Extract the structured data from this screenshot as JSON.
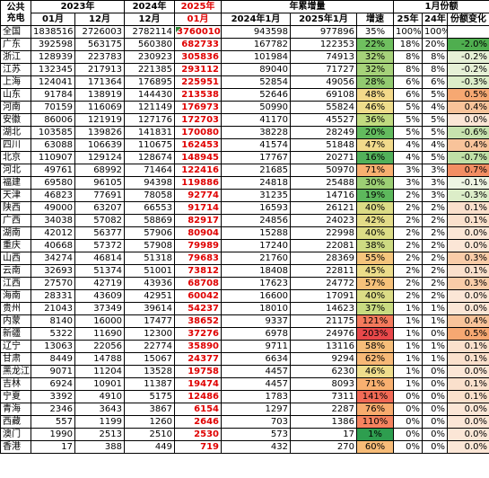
{
  "header": {
    "col0": "公共充电",
    "y2023": "2023年",
    "y2024": "2024年",
    "y2025": "2025年",
    "ytd": "年累增量",
    "jan_share": "1月份额",
    "m01": "01月",
    "m12": "12月",
    "ytd2024": "2024年1月",
    "ytd2025": "2025年1月",
    "growth": "增速",
    "s25": "25年",
    "s24": "24年",
    "share_change": "份额变化"
  },
  "rows": [
    {
      "name": "全国",
      "a": "1838516",
      "b": "2726003",
      "c": "2782114",
      "d": "3760010",
      "e": "943598",
      "f": "977896",
      "g": "35%",
      "h": "100%",
      "i": "100%",
      "j": "",
      "gc": "#ffffff",
      "jc": "#ffffff"
    },
    {
      "name": "广东",
      "a": "392598",
      "b": "563175",
      "c": "560380",
      "d": "682733",
      "e": "167782",
      "f": "122353",
      "g": "22%",
      "h": "18%",
      "i": "20%",
      "j": "-2.0%",
      "gc": "#6fbf5f",
      "jc": "#4fae4f"
    },
    {
      "name": "浙江",
      "a": "128939",
      "b": "223783",
      "c": "230923",
      "d": "305836",
      "e": "101984",
      "f": "74913",
      "g": "32%",
      "h": "8%",
      "i": "8%",
      "j": "-0.2%",
      "gc": "#a6d27a",
      "jc": "#e6f1d6"
    },
    {
      "name": "江苏",
      "a": "132345",
      "b": "217913",
      "c": "221385",
      "d": "293112",
      "e": "89040",
      "f": "71727",
      "g": "32%",
      "h": "8%",
      "i": "8%",
      "j": "-0.2%",
      "gc": "#a6d27a",
      "jc": "#e6f1d6"
    },
    {
      "name": "上海",
      "a": "124041",
      "b": "171364",
      "c": "176895",
      "d": "225951",
      "e": "52854",
      "f": "49056",
      "g": "28%",
      "h": "6%",
      "i": "6%",
      "j": "-0.3%",
      "gc": "#92ca70",
      "jc": "#dcedc8"
    },
    {
      "name": "山东",
      "a": "91784",
      "b": "138919",
      "c": "144430",
      "d": "213538",
      "e": "52646",
      "f": "69108",
      "g": "48%",
      "h": "6%",
      "i": "5%",
      "j": "0.5%",
      "gc": "#f3d98a",
      "jc": "#f6a872"
    },
    {
      "name": "河南",
      "a": "70159",
      "b": "116069",
      "c": "121149",
      "d": "176973",
      "e": "50990",
      "f": "55824",
      "g": "46%",
      "h": "5%",
      "i": "4%",
      "j": "0.4%",
      "gc": "#efdd8c",
      "jc": "#f8c39a"
    },
    {
      "name": "安徽",
      "a": "86006",
      "b": "121919",
      "c": "127176",
      "d": "172703",
      "e": "41170",
      "f": "45527",
      "g": "36%",
      "h": "5%",
      "i": "5%",
      "j": "0.0%",
      "gc": "#c0db80",
      "jc": "#fbe6d6"
    },
    {
      "name": "湖北",
      "a": "103585",
      "b": "139826",
      "c": "141831",
      "d": "170080",
      "e": "38228",
      "f": "28249",
      "g": "20%",
      "h": "5%",
      "i": "5%",
      "j": "-0.6%",
      "gc": "#63bb5e",
      "jc": "#c6e2ae"
    },
    {
      "name": "四川",
      "a": "63088",
      "b": "106639",
      "c": "110675",
      "d": "162453",
      "e": "41574",
      "f": "51848",
      "g": "47%",
      "h": "4%",
      "i": "4%",
      "j": "0.4%",
      "gc": "#f1da8b",
      "jc": "#f8c39a"
    },
    {
      "name": "北京",
      "a": "110907",
      "b": "129124",
      "c": "128674",
      "d": "148945",
      "e": "17767",
      "f": "20271",
      "g": "16%",
      "h": "4%",
      "i": "5%",
      "j": "-0.7%",
      "gc": "#52b15a",
      "jc": "#c0dfa6"
    },
    {
      "name": "河北",
      "a": "49761",
      "b": "68992",
      "c": "71464",
      "d": "122416",
      "e": "21685",
      "f": "50970",
      "g": "71%",
      "h": "3%",
      "i": "3%",
      "j": "0.7%",
      "gc": "#f8b070",
      "jc": "#f28e63"
    },
    {
      "name": "福建",
      "a": "69580",
      "b": "96105",
      "c": "94398",
      "d": "119886",
      "e": "24818",
      "f": "25488",
      "g": "30%",
      "h": "3%",
      "i": "3%",
      "j": "-0.1%",
      "gc": "#9ccf74",
      "jc": "#eef5e3"
    },
    {
      "name": "天津",
      "a": "46823",
      "b": "77691",
      "c": "78058",
      "d": "92774",
      "e": "31235",
      "f": "14716",
      "g": "19%",
      "h": "2%",
      "i": "3%",
      "j": "-0.3%",
      "gc": "#5db85c",
      "jc": "#dcedc8"
    },
    {
      "name": "陕西",
      "a": "49000",
      "b": "63207",
      "c": "66553",
      "d": "91714",
      "e": "16593",
      "f": "26121",
      "g": "40%",
      "h": "2%",
      "i": "2%",
      "j": "0.1%",
      "gc": "#dcdc86",
      "jc": "#fae0cc"
    },
    {
      "name": "广西",
      "a": "34038",
      "b": "57082",
      "c": "58869",
      "d": "82917",
      "e": "24856",
      "f": "24023",
      "g": "42%",
      "h": "2%",
      "i": "2%",
      "j": "0.1%",
      "gc": "#e3dc88",
      "jc": "#fae0cc"
    },
    {
      "name": "湖南",
      "a": "42012",
      "b": "56377",
      "c": "57906",
      "d": "80904",
      "e": "15288",
      "f": "22998",
      "g": "40%",
      "h": "2%",
      "i": "2%",
      "j": "0.0%",
      "gc": "#dcdc86",
      "jc": "#fbe6d6"
    },
    {
      "name": "重庆",
      "a": "40668",
      "b": "57372",
      "c": "57908",
      "d": "79989",
      "e": "17240",
      "f": "22081",
      "g": "38%",
      "h": "2%",
      "i": "2%",
      "j": "0.0%",
      "gc": "#cedb82",
      "jc": "#fbe6d6"
    },
    {
      "name": "山西",
      "a": "34274",
      "b": "46814",
      "c": "51318",
      "d": "79683",
      "e": "21760",
      "f": "28369",
      "g": "55%",
      "h": "2%",
      "i": "2%",
      "j": "0.3%",
      "gc": "#f5c57c",
      "jc": "#f9cca8"
    },
    {
      "name": "云南",
      "a": "32693",
      "b": "51374",
      "c": "51001",
      "d": "73812",
      "e": "18408",
      "f": "22811",
      "g": "45%",
      "h": "2%",
      "i": "2%",
      "j": "0.1%",
      "gc": "#ecdc8a",
      "jc": "#fae0cc"
    },
    {
      "name": "江西",
      "a": "27570",
      "b": "42719",
      "c": "43936",
      "d": "68708",
      "e": "17623",
      "f": "24772",
      "g": "57%",
      "h": "2%",
      "i": "2%",
      "j": "0.3%",
      "gc": "#f6c17a",
      "jc": "#f9cca8"
    },
    {
      "name": "海南",
      "a": "28331",
      "b": "43609",
      "c": "42951",
      "d": "60042",
      "e": "16600",
      "f": "17091",
      "g": "40%",
      "h": "2%",
      "i": "2%",
      "j": "0.0%",
      "gc": "#dcdc86",
      "jc": "#fbe6d6"
    },
    {
      "name": "贵州",
      "a": "21043",
      "b": "37349",
      "c": "39614",
      "d": "54237",
      "e": "18010",
      "f": "14623",
      "g": "37%",
      "h": "1%",
      "i": "1%",
      "j": "0.0%",
      "gc": "#c8db81",
      "jc": "#fbe6d6"
    },
    {
      "name": "内蒙",
      "a": "8140",
      "b": "16000",
      "c": "17477",
      "d": "38652",
      "e": "9337",
      "f": "21175",
      "g": "121%",
      "h": "1%",
      "i": "1%",
      "j": "0.4%",
      "gc": "#f47a5c",
      "jc": "#f8c39a"
    },
    {
      "name": "新疆",
      "a": "5322",
      "b": "11690",
      "c": "12300",
      "d": "37276",
      "e": "6978",
      "f": "24976",
      "g": "203%",
      "h": "1%",
      "i": "0%",
      "j": "0.5%",
      "gc": "#e8484a",
      "jc": "#f6a872"
    },
    {
      "name": "辽宁",
      "a": "13063",
      "b": "22056",
      "c": "22774",
      "d": "35890",
      "e": "9711",
      "f": "13116",
      "g": "58%",
      "h": "1%",
      "i": "1%",
      "j": "0.1%",
      "gc": "#f6be7a",
      "jc": "#fae0cc"
    },
    {
      "name": "甘肃",
      "a": "8449",
      "b": "14788",
      "c": "15067",
      "d": "24377",
      "e": "6634",
      "f": "9294",
      "g": "62%",
      "h": "1%",
      "i": "1%",
      "j": "0.1%",
      "gc": "#f7b977",
      "jc": "#fae0cc"
    },
    {
      "name": "黑龙江",
      "a": "9071",
      "b": "11204",
      "c": "13528",
      "d": "19758",
      "e": "4457",
      "f": "6230",
      "g": "46%",
      "h": "1%",
      "i": "0%",
      "j": "0.0%",
      "gc": "#efdd8c",
      "jc": "#fbe6d6"
    },
    {
      "name": "吉林",
      "a": "6924",
      "b": "10901",
      "c": "11387",
      "d": "19474",
      "e": "4457",
      "f": "8093",
      "g": "71%",
      "h": "1%",
      "i": "0%",
      "j": "0.1%",
      "gc": "#f8b070",
      "jc": "#fae0cc"
    },
    {
      "name": "宁夏",
      "a": "3392",
      "b": "4910",
      "c": "5175",
      "d": "12486",
      "e": "1783",
      "f": "7311",
      "g": "141%",
      "h": "0%",
      "i": "0%",
      "j": "0.1%",
      "gc": "#f26a56",
      "jc": "#fae0cc"
    },
    {
      "name": "青海",
      "a": "2346",
      "b": "3643",
      "c": "3867",
      "d": "6154",
      "e": "1297",
      "f": "2287",
      "g": "76%",
      "h": "0%",
      "i": "0%",
      "j": "0.0%",
      "gc": "#f8ab6e",
      "jc": "#fbe6d6"
    },
    {
      "name": "西藏",
      "a": "557",
      "b": "1199",
      "c": "1260",
      "d": "2646",
      "e": "703",
      "f": "1386",
      "g": "110%",
      "h": "0%",
      "i": "0%",
      "j": "0.0%",
      "gc": "#f5835f",
      "jc": "#fbe6d6"
    },
    {
      "name": "澳门",
      "a": "1990",
      "b": "2513",
      "c": "2510",
      "d": "2530",
      "e": "573",
      "f": "17",
      "g": "1%",
      "h": "0%",
      "i": "0%",
      "j": "0.0%",
      "gc": "#2e9e4f",
      "jc": "#fbe6d6"
    },
    {
      "name": "香港",
      "a": "17",
      "b": "388",
      "c": "449",
      "d": "719",
      "e": "432",
      "f": "270",
      "g": "60%",
      "h": "0%",
      "i": "0%",
      "j": "0.0%",
      "gc": "#f7bc78",
      "jc": "#fbe6d6"
    }
  ]
}
